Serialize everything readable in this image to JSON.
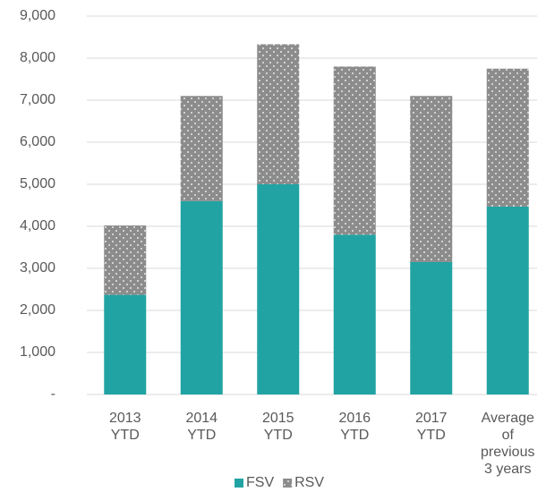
{
  "chart_data": {
    "type": "stacked_bar",
    "categories": [
      "2013\nYTD",
      "2014\nYTD",
      "2015\nYTD",
      "2016\nYTD",
      "2017\nYTD",
      "Average\nof\nprevious\n3 years"
    ],
    "series": [
      {
        "name": "FSV",
        "color": "#21a3a3",
        "values": [
          2370,
          4600,
          5000,
          3800,
          3150,
          4470
        ]
      },
      {
        "name": "RSV",
        "color": "#8c8c8c",
        "values": [
          1650,
          2500,
          3330,
          4000,
          3950,
          3280
        ]
      }
    ],
    "ylim": [
      0,
      9000
    ],
    "yticks": [
      {
        "value": 0,
        "label": "-"
      },
      {
        "value": 1000,
        "label": "1,000"
      },
      {
        "value": 2000,
        "label": "2,000"
      },
      {
        "value": 3000,
        "label": "3,000"
      },
      {
        "value": 4000,
        "label": "4,000"
      },
      {
        "value": 5000,
        "label": "5,000"
      },
      {
        "value": 6000,
        "label": "6,000"
      },
      {
        "value": 7000,
        "label": "7,000"
      },
      {
        "value": 8000,
        "label": "8,000"
      },
      {
        "value": 9000,
        "label": "9,000"
      }
    ],
    "grid": true,
    "legend": "bottom"
  }
}
